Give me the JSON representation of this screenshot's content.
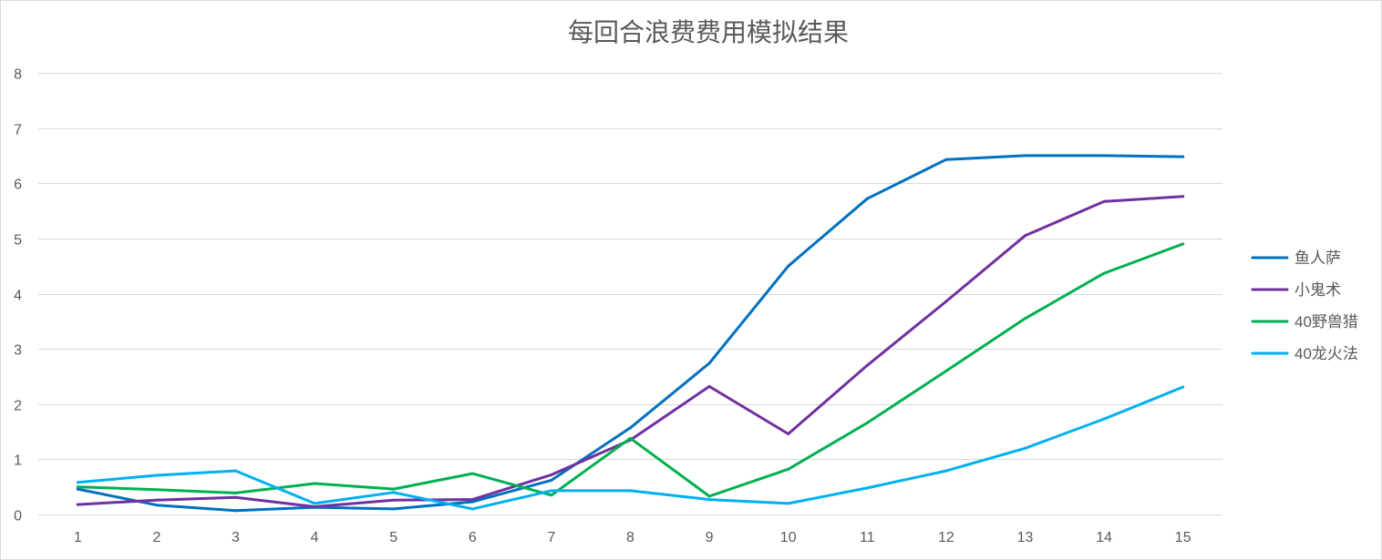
{
  "chart_data": {
    "type": "line",
    "title": "每回合浪费费用模拟结果",
    "categories": [
      1,
      2,
      3,
      4,
      5,
      6,
      7,
      8,
      9,
      10,
      11,
      12,
      13,
      14,
      15
    ],
    "ylim": [
      0,
      8
    ],
    "y_ticks": [
      0,
      1,
      2,
      3,
      4,
      5,
      6,
      7,
      8
    ],
    "grid": true,
    "legend_position": "right",
    "series": [
      {
        "name": "鱼人萨",
        "color": "#0070C0",
        "values": [
          0.46,
          0.17,
          0.07,
          0.13,
          0.1,
          0.23,
          0.62,
          1.57,
          2.74,
          4.5,
          5.72,
          6.43,
          6.5,
          6.5,
          6.48
        ]
      },
      {
        "name": "小鬼术",
        "color": "#7030A0",
        "values": [
          0.18,
          0.26,
          0.31,
          0.14,
          0.26,
          0.27,
          0.72,
          1.35,
          2.32,
          1.46,
          2.7,
          3.86,
          5.05,
          5.67,
          5.76
        ]
      },
      {
        "name": "40野兽猎",
        "color": "#00B050",
        "values": [
          0.5,
          0.45,
          0.39,
          0.56,
          0.46,
          0.74,
          0.35,
          1.38,
          0.33,
          0.82,
          1.66,
          2.6,
          3.55,
          4.37,
          4.9
        ]
      },
      {
        "name": "40龙火法",
        "color": "#00B0F0",
        "values": [
          0.58,
          0.71,
          0.79,
          0.2,
          0.4,
          0.1,
          0.43,
          0.43,
          0.27,
          0.2,
          0.48,
          0.79,
          1.2,
          1.73,
          2.31
        ]
      }
    ]
  }
}
